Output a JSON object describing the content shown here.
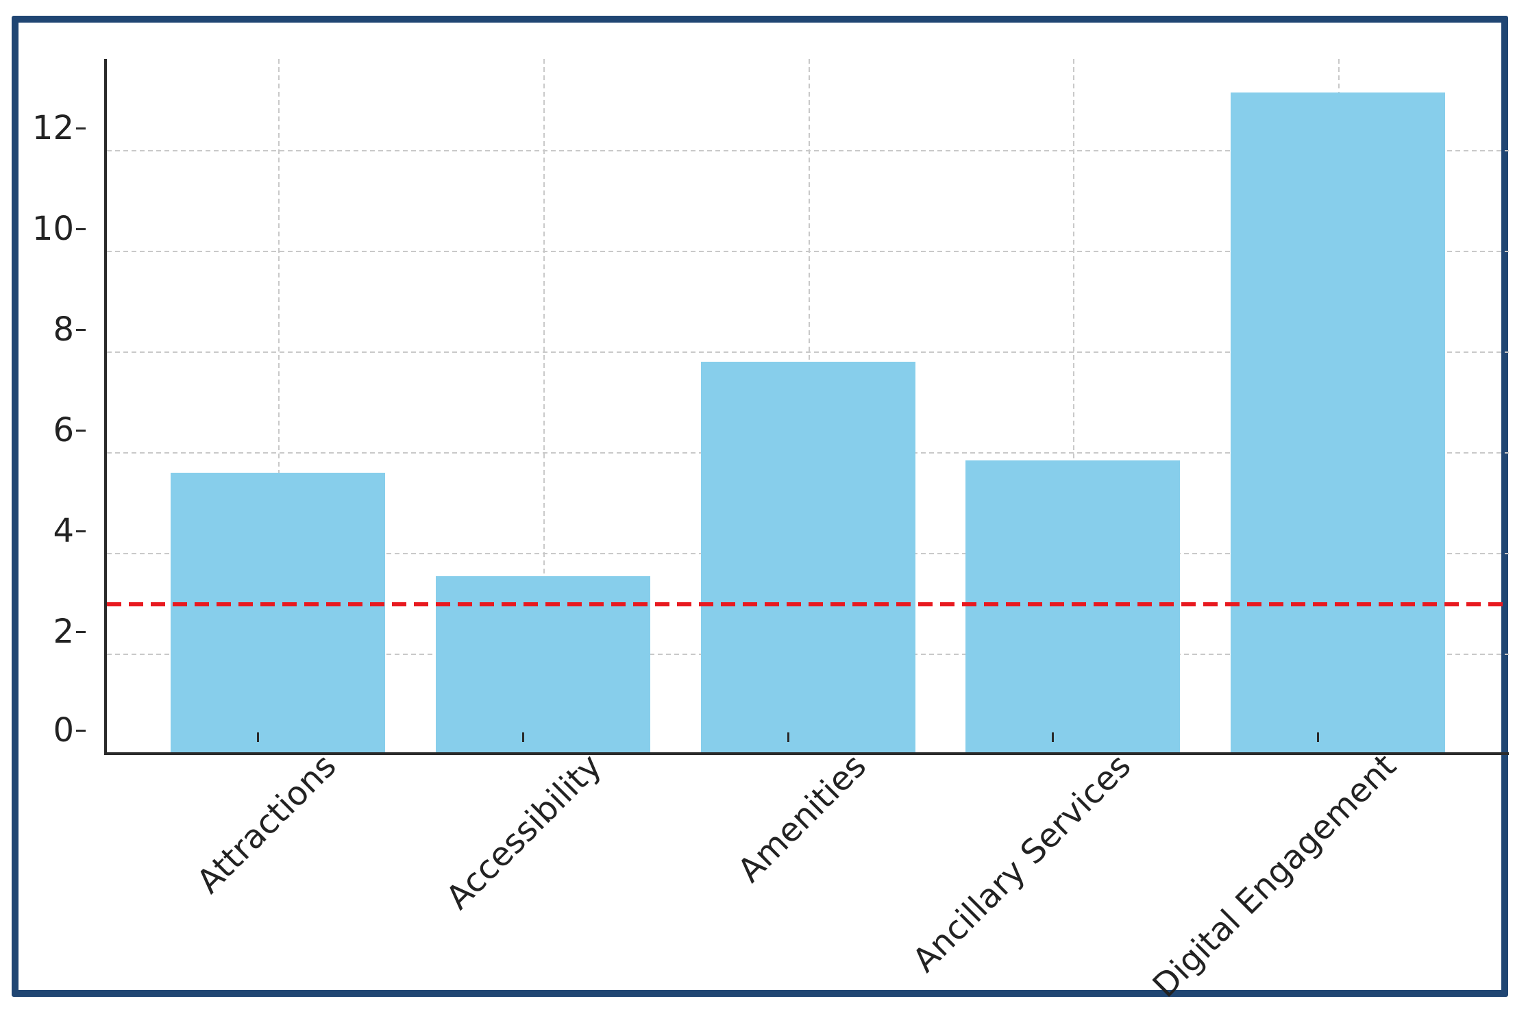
{
  "chart_data": {
    "type": "bar",
    "categories": [
      "Attractions",
      "Accessibility",
      "Amenities",
      "Ancillary Services",
      "Digital Engagement"
    ],
    "values": [
      5.55,
      3.5,
      7.75,
      5.8,
      13.1
    ],
    "yticks": [
      0,
      2,
      4,
      6,
      8,
      10,
      12
    ],
    "ylim": [
      0,
      13.8
    ],
    "title": "",
    "xlabel": "",
    "ylabel": "",
    "grid": true,
    "legend": "none",
    "reference_line": {
      "y": 3,
      "style": "dashed"
    },
    "colors": {
      "bar": "#87CEEB",
      "reference_line": "#e8191f",
      "frame_border": "#204673",
      "axis_spine": "#2a2a2a",
      "gridline": "#c9c9c9",
      "tick_text": "#222222",
      "background": "#ffffff"
    }
  }
}
